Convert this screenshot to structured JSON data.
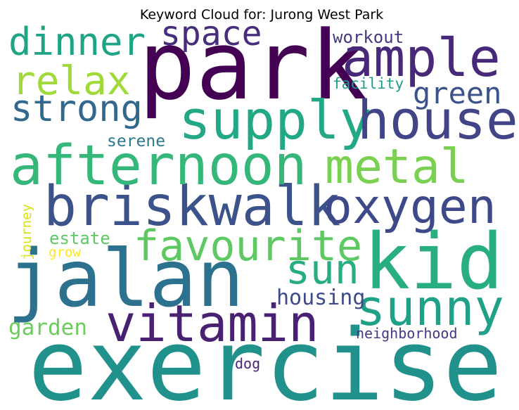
{
  "chart_data": {
    "type": "wordcloud",
    "title": "Keyword Cloud for: Jurong West Park",
    "words": [
      {
        "text": "park",
        "color": "#440154"
      },
      {
        "text": "exercise",
        "color": "#21918c"
      },
      {
        "text": "jalan",
        "color": "#2c728e"
      },
      {
        "text": "kid",
        "color": "#28ae80"
      },
      {
        "text": "briskwalk",
        "color": "#3b528b"
      },
      {
        "text": "afternoon",
        "color": "#35b779"
      },
      {
        "text": "supply",
        "color": "#22a884"
      },
      {
        "text": "house",
        "color": "#414487"
      },
      {
        "text": "ample",
        "color": "#482878"
      },
      {
        "text": "metal",
        "color": "#7ad151"
      },
      {
        "text": "oxygen",
        "color": "#3e4989"
      },
      {
        "text": "vitamin",
        "color": "#482173"
      },
      {
        "text": "sunny",
        "color": "#1fa187"
      },
      {
        "text": "favourite",
        "color": "#5ec962"
      },
      {
        "text": "sun",
        "color": "#27ad81"
      },
      {
        "text": "strong",
        "color": "#31688e"
      },
      {
        "text": "relax",
        "color": "#a0da39"
      },
      {
        "text": "dinner",
        "color": "#20a486"
      },
      {
        "text": "space",
        "color": "#472d7b"
      },
      {
        "text": "green",
        "color": "#3b528b"
      },
      {
        "text": "garden",
        "color": "#6ccd5a"
      },
      {
        "text": "housing",
        "color": "#3e4a89"
      },
      {
        "text": "workout",
        "color": "#443a83"
      },
      {
        "text": "serene",
        "color": "#2a788e"
      },
      {
        "text": "estate",
        "color": "#5ec962"
      },
      {
        "text": "facility",
        "color": "#1f9e89"
      },
      {
        "text": "neighborhood",
        "color": "#443983"
      },
      {
        "text": "dog",
        "color": "#482576"
      },
      {
        "text": "grow",
        "color": "#fde725"
      },
      {
        "text": "journey",
        "color": "#d8e219"
      }
    ]
  }
}
